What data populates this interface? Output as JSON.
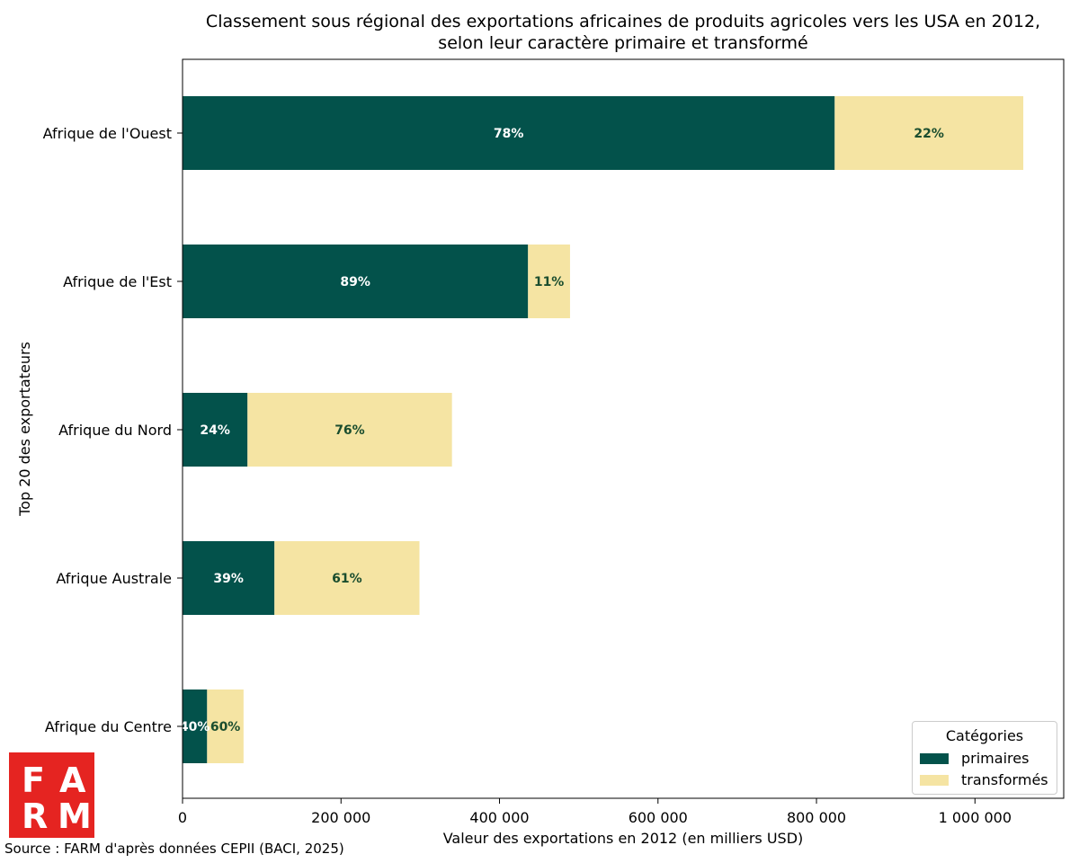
{
  "chart_data": {
    "type": "bar",
    "orientation": "horizontal",
    "stacked": true,
    "title": "Classement sous régional des exportations africaines de produits agricoles vers les USA en 2012,",
    "subtitle": "selon leur caractère primaire et transformé",
    "xlabel": "Valeur des exportations en 2012 (en milliers USD)",
    "ylabel": "Top 20 des exportateurs",
    "xlim": [
      0,
      1112000
    ],
    "xticks": [
      0,
      200000,
      400000,
      600000,
      800000,
      1000000
    ],
    "xtick_labels": [
      "0",
      "200 000",
      "400 000",
      "600 000",
      "800 000",
      "1 000 000"
    ],
    "categories": [
      "Afrique de l'Ouest",
      "Afrique de l'Est",
      "Afrique du Nord",
      "Afrique Australe",
      "Afrique du Centre"
    ],
    "series": [
      {
        "name": "primaires",
        "color": "#03524b",
        "label_color": "#ffffff",
        "values": [
          823000,
          436000,
          82000,
          116000,
          31000
        ],
        "labels": [
          "78%",
          "89%",
          "24%",
          "39%",
          "40%"
        ]
      },
      {
        "name": "transformés",
        "color": "#f5e4a3",
        "label_color": "#1a4d2e",
        "values": [
          238000,
          53000,
          258000,
          183000,
          46000
        ],
        "labels": [
          "22%",
          "11%",
          "76%",
          "61%",
          "60%"
        ]
      }
    ],
    "legend": {
      "title": "Catégories",
      "position": "lower-right"
    },
    "grid": false
  },
  "source": "Source : FARM d'après données CEPII (BACI, 2025)",
  "logo": {
    "letters": [
      "F",
      "A",
      "R",
      "M"
    ],
    "color": "#e52421"
  }
}
